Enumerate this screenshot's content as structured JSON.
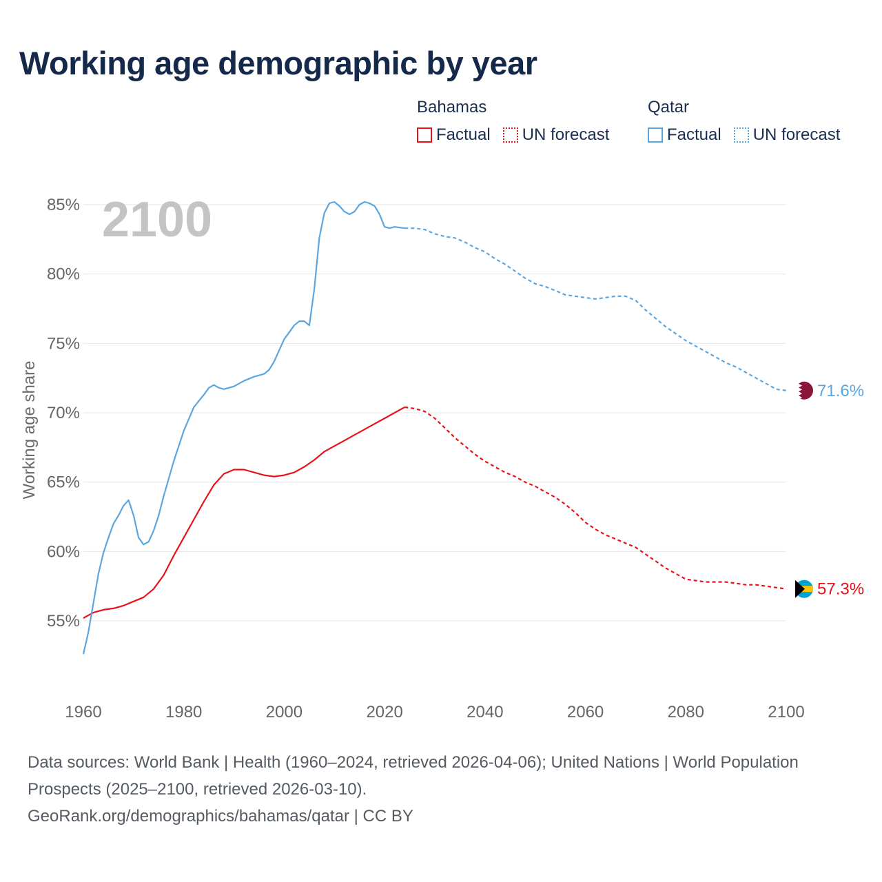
{
  "title": "Working age demographic by year",
  "legend": {
    "groups": [
      {
        "name": "Bahamas",
        "factual_label": "Factual",
        "forecast_label": "UN forecast",
        "color": "#e8121a"
      },
      {
        "name": "Qatar",
        "factual_label": "Factual",
        "forecast_label": "UN forecast",
        "color": "#5aa6e0"
      }
    ]
  },
  "chart_data": {
    "type": "line",
    "title": "Working age demographic by year",
    "ylabel": "Working age share",
    "xlabel": "",
    "xlim": [
      1960,
      2100
    ],
    "ylim": [
      52,
      87
    ],
    "x_ticks": [
      1960,
      1980,
      2000,
      2020,
      2040,
      2060,
      2080,
      2100
    ],
    "x_tick_labels": [
      "1960",
      "1980",
      "2000",
      "2020",
      "2040",
      "2060",
      "2080",
      "2100"
    ],
    "y_ticks": [
      55,
      60,
      65,
      70,
      75,
      80,
      85
    ],
    "y_tick_labels": [
      "55%",
      "60%",
      "65%",
      "70%",
      "75%",
      "80%",
      "85%"
    ],
    "grid": true,
    "year_label": "2100",
    "factual_end_year": 2024,
    "series": [
      {
        "name": "Bahamas",
        "color": "#e8121a",
        "end_label": "57.3%",
        "points": [
          [
            1960,
            55.2
          ],
          [
            1962,
            55.6
          ],
          [
            1964,
            55.8
          ],
          [
            1966,
            55.9
          ],
          [
            1968,
            56.1
          ],
          [
            1970,
            56.4
          ],
          [
            1972,
            56.7
          ],
          [
            1974,
            57.3
          ],
          [
            1976,
            58.3
          ],
          [
            1978,
            59.7
          ],
          [
            1980,
            61.0
          ],
          [
            1982,
            62.3
          ],
          [
            1984,
            63.6
          ],
          [
            1986,
            64.8
          ],
          [
            1988,
            65.6
          ],
          [
            1990,
            65.9
          ],
          [
            1992,
            65.9
          ],
          [
            1994,
            65.7
          ],
          [
            1996,
            65.5
          ],
          [
            1998,
            65.4
          ],
          [
            2000,
            65.5
          ],
          [
            2002,
            65.7
          ],
          [
            2004,
            66.1
          ],
          [
            2006,
            66.6
          ],
          [
            2008,
            67.2
          ],
          [
            2010,
            67.6
          ],
          [
            2012,
            68.0
          ],
          [
            2014,
            68.4
          ],
          [
            2016,
            68.8
          ],
          [
            2018,
            69.2
          ],
          [
            2020,
            69.6
          ],
          [
            2022,
            70.0
          ],
          [
            2024,
            70.4
          ],
          [
            2026,
            70.3
          ],
          [
            2028,
            70.1
          ],
          [
            2030,
            69.6
          ],
          [
            2032,
            68.9
          ],
          [
            2034,
            68.2
          ],
          [
            2036,
            67.6
          ],
          [
            2038,
            67.0
          ],
          [
            2040,
            66.5
          ],
          [
            2042,
            66.1
          ],
          [
            2044,
            65.7
          ],
          [
            2046,
            65.4
          ],
          [
            2048,
            65.0
          ],
          [
            2050,
            64.7
          ],
          [
            2052,
            64.3
          ],
          [
            2054,
            63.9
          ],
          [
            2056,
            63.4
          ],
          [
            2058,
            62.8
          ],
          [
            2060,
            62.1
          ],
          [
            2062,
            61.6
          ],
          [
            2064,
            61.2
          ],
          [
            2066,
            60.9
          ],
          [
            2068,
            60.6
          ],
          [
            2070,
            60.3
          ],
          [
            2072,
            59.8
          ],
          [
            2074,
            59.3
          ],
          [
            2076,
            58.8
          ],
          [
            2078,
            58.4
          ],
          [
            2080,
            58.0
          ],
          [
            2082,
            57.9
          ],
          [
            2084,
            57.8
          ],
          [
            2086,
            57.8
          ],
          [
            2088,
            57.8
          ],
          [
            2090,
            57.7
          ],
          [
            2092,
            57.6
          ],
          [
            2094,
            57.6
          ],
          [
            2096,
            57.5
          ],
          [
            2098,
            57.4
          ],
          [
            2100,
            57.3
          ]
        ]
      },
      {
        "name": "Qatar",
        "color": "#5aa6e0",
        "end_label": "71.6%",
        "points": [
          [
            1960,
            52.6
          ],
          [
            1961,
            54.2
          ],
          [
            1962,
            56.3
          ],
          [
            1963,
            58.4
          ],
          [
            1964,
            59.9
          ],
          [
            1965,
            61.0
          ],
          [
            1966,
            62.0
          ],
          [
            1967,
            62.6
          ],
          [
            1968,
            63.3
          ],
          [
            1969,
            63.7
          ],
          [
            1970,
            62.6
          ],
          [
            1971,
            61.0
          ],
          [
            1972,
            60.5
          ],
          [
            1973,
            60.7
          ],
          [
            1974,
            61.5
          ],
          [
            1975,
            62.6
          ],
          [
            1976,
            64.0
          ],
          [
            1978,
            66.5
          ],
          [
            1980,
            68.7
          ],
          [
            1982,
            70.4
          ],
          [
            1984,
            71.3
          ],
          [
            1985,
            71.8
          ],
          [
            1986,
            72.0
          ],
          [
            1987,
            71.8
          ],
          [
            1988,
            71.7
          ],
          [
            1990,
            71.9
          ],
          [
            1992,
            72.3
          ],
          [
            1994,
            72.6
          ],
          [
            1996,
            72.8
          ],
          [
            1997,
            73.1
          ],
          [
            1998,
            73.7
          ],
          [
            2000,
            75.3
          ],
          [
            2002,
            76.3
          ],
          [
            2003,
            76.6
          ],
          [
            2004,
            76.6
          ],
          [
            2005,
            76.3
          ],
          [
            2006,
            78.9
          ],
          [
            2007,
            82.6
          ],
          [
            2008,
            84.4
          ],
          [
            2009,
            85.1
          ],
          [
            2010,
            85.2
          ],
          [
            2011,
            84.9
          ],
          [
            2012,
            84.5
          ],
          [
            2013,
            84.3
          ],
          [
            2014,
            84.5
          ],
          [
            2015,
            85.0
          ],
          [
            2016,
            85.2
          ],
          [
            2017,
            85.1
          ],
          [
            2018,
            84.9
          ],
          [
            2019,
            84.3
          ],
          [
            2020,
            83.4
          ],
          [
            2021,
            83.3
          ],
          [
            2022,
            83.4
          ],
          [
            2024,
            83.3
          ],
          [
            2026,
            83.3
          ],
          [
            2028,
            83.2
          ],
          [
            2030,
            82.9
          ],
          [
            2032,
            82.7
          ],
          [
            2034,
            82.6
          ],
          [
            2036,
            82.3
          ],
          [
            2038,
            81.9
          ],
          [
            2040,
            81.6
          ],
          [
            2042,
            81.1
          ],
          [
            2044,
            80.7
          ],
          [
            2046,
            80.2
          ],
          [
            2048,
            79.7
          ],
          [
            2050,
            79.3
          ],
          [
            2052,
            79.1
          ],
          [
            2054,
            78.8
          ],
          [
            2056,
            78.5
          ],
          [
            2058,
            78.4
          ],
          [
            2060,
            78.3
          ],
          [
            2062,
            78.2
          ],
          [
            2064,
            78.3
          ],
          [
            2066,
            78.4
          ],
          [
            2068,
            78.4
          ],
          [
            2070,
            78.1
          ],
          [
            2072,
            77.4
          ],
          [
            2074,
            76.8
          ],
          [
            2076,
            76.2
          ],
          [
            2078,
            75.7
          ],
          [
            2080,
            75.2
          ],
          [
            2082,
            74.8
          ],
          [
            2084,
            74.4
          ],
          [
            2086,
            74.0
          ],
          [
            2088,
            73.6
          ],
          [
            2090,
            73.3
          ],
          [
            2092,
            72.9
          ],
          [
            2094,
            72.5
          ],
          [
            2096,
            72.1
          ],
          [
            2098,
            71.7
          ],
          [
            2100,
            71.6
          ]
        ]
      }
    ]
  },
  "footer": {
    "sources": "Data sources: World Bank | Health (1960–2024, retrieved 2026-04-06); United Nations | World Population Prospects (2025–2100, retrieved 2026-03-10).",
    "credit": "GeoRank.org/demographics/bahamas/qatar | CC BY"
  }
}
